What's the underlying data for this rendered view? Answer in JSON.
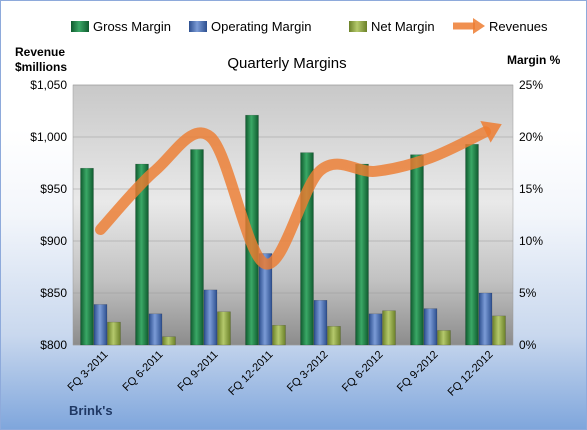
{
  "chart_data": {
    "type": "bar",
    "title": "Quarterly Margins",
    "footer": "Brink's",
    "left_axis_title": [
      "Revenue",
      "$millions"
    ],
    "right_axis_title": "Margin %",
    "categories": [
      "FQ 3-2011",
      "FQ 6-2011",
      "FQ 9-2011",
      "FQ 12-2011",
      "FQ 3-2012",
      "FQ 6-2012",
      "FQ 9-2012",
      "FQ 12-2012"
    ],
    "left_axis": {
      "min": 800,
      "max": 1050,
      "ticks": [
        "$800",
        "$850",
        "$900",
        "$950",
        "$1,000",
        "$1,050"
      ]
    },
    "right_axis": {
      "min": 0,
      "max": 25,
      "ticks": [
        "0%",
        "5%",
        "10%",
        "15%",
        "20%",
        "25%"
      ]
    },
    "series": [
      {
        "name": "Gross Margin",
        "kind": "bar",
        "axis": "right",
        "color": "#1e7b45",
        "values": [
          17.0,
          17.4,
          18.8,
          22.1,
          18.5,
          17.4,
          18.3,
          19.3
        ]
      },
      {
        "name": "Operating Margin",
        "kind": "bar",
        "axis": "right",
        "color": "#4a6fb5",
        "values": [
          3.9,
          3.0,
          5.3,
          8.8,
          4.3,
          3.0,
          3.5,
          5.0
        ]
      },
      {
        "name": "Net Margin",
        "kind": "bar",
        "axis": "right",
        "color": "#8ea44a",
        "values": [
          2.2,
          0.8,
          3.2,
          1.9,
          1.8,
          3.3,
          1.4,
          2.8
        ]
      },
      {
        "name": "Revenues",
        "kind": "line",
        "axis": "left",
        "color": "#ed7d31",
        "values": [
          911,
          968,
          1000,
          878,
          968,
          967,
          980,
          1005
        ]
      }
    ],
    "grid": true,
    "legend_position": "top"
  }
}
